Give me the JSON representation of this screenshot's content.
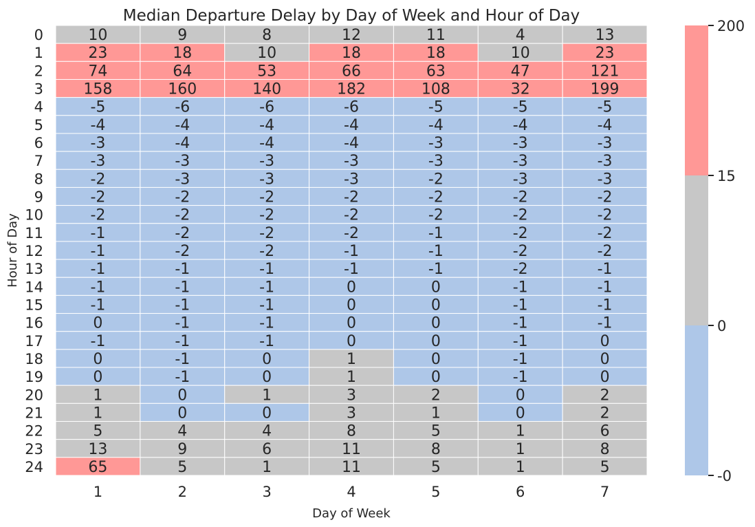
{
  "chart_data": {
    "type": "heatmap",
    "title": "Median Departure Delay by Day of Week and Hour of Day",
    "xlabel": "Day of Week",
    "ylabel": "Hour of Day",
    "x_categories": [
      "1",
      "2",
      "3",
      "4",
      "5",
      "6",
      "7"
    ],
    "y_categories": [
      "0",
      "1",
      "2",
      "3",
      "4",
      "5",
      "6",
      "7",
      "8",
      "9",
      "10",
      "11",
      "12",
      "13",
      "14",
      "15",
      "16",
      "17",
      "18",
      "19",
      "20",
      "21",
      "22",
      "23",
      "24"
    ],
    "values": [
      [
        10,
        9,
        8,
        12,
        11,
        4,
        13
      ],
      [
        23,
        18,
        10,
        18,
        18,
        10,
        23
      ],
      [
        74,
        64,
        53,
        66,
        63,
        47,
        121
      ],
      [
        158,
        160,
        140,
        182,
        108,
        32,
        199
      ],
      [
        -5,
        -6,
        -6,
        -6,
        -5,
        -5,
        -5
      ],
      [
        -4,
        -4,
        -4,
        -4,
        -4,
        -4,
        -4
      ],
      [
        -3,
        -4,
        -4,
        -4,
        -3,
        -3,
        -3
      ],
      [
        -3,
        -3,
        -3,
        -3,
        -3,
        -3,
        -3
      ],
      [
        -2,
        -3,
        -3,
        -3,
        -2,
        -3,
        -3
      ],
      [
        -2,
        -2,
        -2,
        -2,
        -2,
        -2,
        -2
      ],
      [
        -2,
        -2,
        -2,
        -2,
        -2,
        -2,
        -2
      ],
      [
        -1,
        -2,
        -2,
        -2,
        -1,
        -2,
        -2
      ],
      [
        -1,
        -2,
        -2,
        -1,
        -1,
        -2,
        -2
      ],
      [
        -1,
        -1,
        -1,
        -1,
        -1,
        -2,
        -1
      ],
      [
        -1,
        -1,
        -1,
        0,
        0,
        -1,
        -1
      ],
      [
        -1,
        -1,
        -1,
        0,
        0,
        -1,
        -1
      ],
      [
        0,
        -1,
        -1,
        0,
        0,
        -1,
        -1
      ],
      [
        -1,
        -1,
        -1,
        0,
        0,
        -1,
        0
      ],
      [
        0,
        -1,
        0,
        1,
        0,
        -1,
        0
      ],
      [
        0,
        -1,
        0,
        1,
        0,
        -1,
        0
      ],
      [
        1,
        0,
        1,
        3,
        2,
        0,
        2
      ],
      [
        1,
        0,
        0,
        3,
        1,
        0,
        2
      ],
      [
        5,
        4,
        4,
        8,
        5,
        1,
        6
      ],
      [
        13,
        9,
        6,
        11,
        8,
        1,
        8
      ],
      [
        65,
        5,
        1,
        11,
        5,
        1,
        5
      ]
    ],
    "colorbar": {
      "boundaries": [
        -0.5,
        0.5,
        15,
        200
      ],
      "tick_labels": [
        "-0",
        "0",
        "15",
        "200"
      ],
      "colors": [
        "#aec7e8",
        "#c7c7c7",
        "#ff9896"
      ]
    },
    "grid": false,
    "legend": "colorbar-right"
  }
}
